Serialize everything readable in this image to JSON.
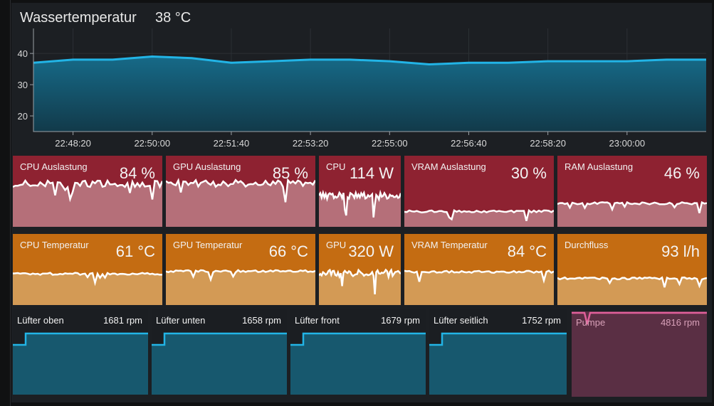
{
  "header": {
    "title": "Wassertemperatur",
    "value": "38 °C"
  },
  "chart_data": {
    "type": "area",
    "x": [
      "22:47:20",
      "22:48:20",
      "22:49:20",
      "22:50:00",
      "22:50:40",
      "22:51:40",
      "22:52:40",
      "22:53:20",
      "22:54:20",
      "22:55:00",
      "22:56:00",
      "22:56:40",
      "22:57:40",
      "22:58:20",
      "22:59:20",
      "23:00:00",
      "23:01:00",
      "23:02:00"
    ],
    "values": [
      37,
      38,
      38,
      39,
      38.5,
      37,
      37.5,
      38,
      38,
      37.5,
      36.5,
      37,
      37,
      37.5,
      37.5,
      37.5,
      38,
      38
    ],
    "xticks": [
      "22:48:20",
      "22:50:00",
      "22:51:40",
      "22:53:20",
      "22:55:00",
      "22:56:40",
      "22:58:20",
      "23:00:00"
    ],
    "yticks": [
      "20",
      "30",
      "40"
    ],
    "ylim": [
      15,
      48
    ]
  },
  "tiles_row1": [
    {
      "label": "CPU Auslastung",
      "value": "84 %",
      "level": 0.84,
      "color": "#8e2231"
    },
    {
      "label": "GPU Auslastung",
      "value": "85 %",
      "level": 0.85,
      "color": "#8e2231"
    },
    {
      "label": "CPU",
      "value": "114 W",
      "level": 0.6,
      "color": "#8e2231"
    },
    {
      "label": "VRAM Auslastung",
      "value": "30 %",
      "level": 0.3,
      "color": "#8e2231"
    },
    {
      "label": "RAM Auslastung",
      "value": "46 %",
      "level": 0.46,
      "color": "#8e2231"
    }
  ],
  "tiles_row2": [
    {
      "label": "CPU Temperatur",
      "value": "61 °C",
      "level": 0.61,
      "color": "#c46c12"
    },
    {
      "label": "GPU Temperatur",
      "value": "66 °C",
      "level": 0.66,
      "color": "#c46c12"
    },
    {
      "label": "GPU",
      "value": "320 W",
      "level": 0.62,
      "color": "#c46c12"
    },
    {
      "label": "VRAM Temperatur",
      "value": "84 °C",
      "level": 0.65,
      "color": "#c46c12"
    },
    {
      "label": "Durchfluss",
      "value": "93 l/h",
      "level": 0.52,
      "color": "#c46c12"
    }
  ],
  "fans": [
    {
      "label": "Lüfter oben",
      "value": "1681 rpm"
    },
    {
      "label": "Lüfter unten",
      "value": "1658 rpm"
    },
    {
      "label": "Lüfter front",
      "value": "1679 rpm"
    },
    {
      "label": "Lüfter seitlich",
      "value": "1752 rpm"
    }
  ],
  "pump": {
    "label": "Pumpe",
    "value": "4816 rpm"
  },
  "colors": {
    "accent": "#22b4e6",
    "red": "#8e2231",
    "orange": "#c46c12",
    "pump": "#e0609a"
  }
}
